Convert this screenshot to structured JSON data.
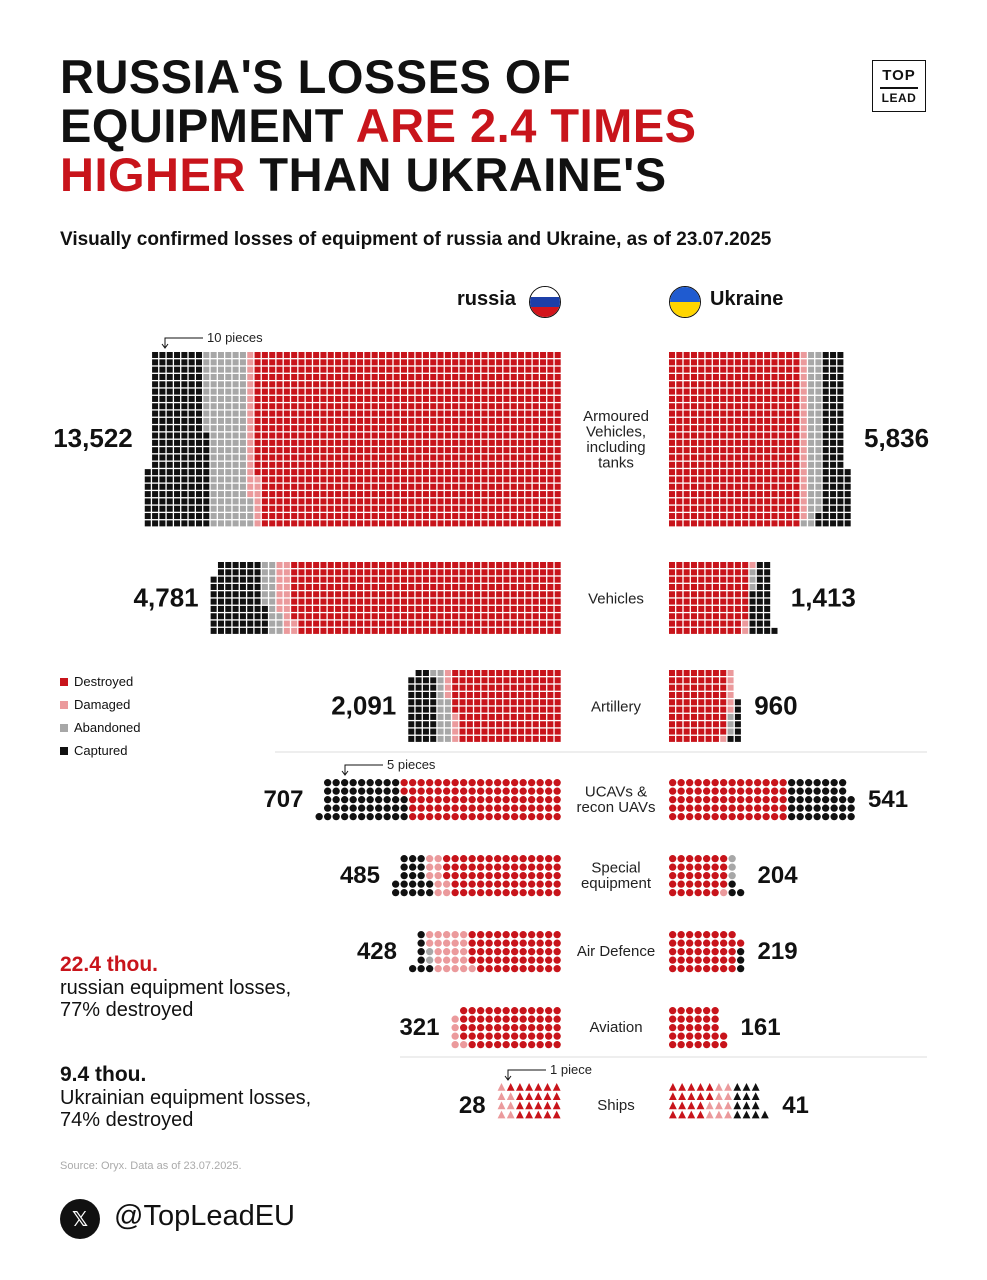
{
  "title": {
    "line1": "RUSSIA'S LOSSES OF",
    "line2_black": "EQUIPMENT ",
    "line2_red": "ARE 2.4 TIMES",
    "line3_red": "HIGHER",
    "line3_black": " THAN UKRAINE'S"
  },
  "subtitle": "Visually confirmed losses of equipment of russia and Ukraine, as of 23.07.2025",
  "logo": {
    "line1": "TOP",
    "line2": "LEAD"
  },
  "colors": {
    "destroyed": "#c8141b",
    "damaged": "#eb9a9c",
    "abandoned": "#a7a7a7",
    "captured": "#111111"
  },
  "legend": [
    "Destroyed",
    "Damaged",
    "Abandoned",
    "Captured"
  ],
  "notes": {
    "armoured": "10 pieces",
    "ucav": "5 pieces",
    "ships": "1 piece"
  },
  "summary": {
    "russia_value": "22.4 thou.",
    "russia_text1": "russian equipment losses,",
    "russia_text2": "77% destroyed",
    "ukraine_value": "9.4 thou.",
    "ukraine_text1": "Ukrainian equipment losses,",
    "ukraine_text2": "74% destroyed"
  },
  "source": "Source: Oryx. Data as of 23.07.2025.",
  "social": {
    "icon": "x-logo-icon",
    "glyph": "𝕏",
    "handle": "@TopLeadEU"
  },
  "chart_data": {
    "type": "waffle",
    "series": [
      {
        "name": "russia",
        "flag": "russia-flag-icon"
      },
      {
        "name": "Ukraine",
        "flag": "ukraine-flag-icon"
      }
    ],
    "categories": [
      {
        "label": "Armoured Vehicles, including tanks",
        "label_lines": [
          "Armoured",
          "Vehicles,",
          "including",
          "tanks"
        ],
        "unit": 10,
        "shape": "square",
        "russia": 13522,
        "ukraine": 5836,
        "russia_parts": [
          0.74,
          0.02,
          0.1,
          0.14
        ],
        "ukraine_parts": [
          0.74,
          0.04,
          0.08,
          0.14
        ]
      },
      {
        "label": "Vehicles",
        "label_lines": [
          "Vehicles"
        ],
        "unit": 10,
        "shape": "square",
        "russia": 4781,
        "ukraine": 1413,
        "russia_parts": [
          0.77,
          0.04,
          0.04,
          0.15
        ],
        "ukraine_parts": [
          0.77,
          0.02,
          0.02,
          0.19
        ]
      },
      {
        "label": "Artillery",
        "label_lines": [
          "Artillery"
        ],
        "unit": 10,
        "shape": "square",
        "russia": 2091,
        "ukraine": 960,
        "russia_parts": [
          0.7,
          0.04,
          0.08,
          0.18
        ],
        "ukraine_parts": [
          0.83,
          0.07,
          0.03,
          0.07
        ]
      },
      {
        "label": "UCAVs & recon UAVs",
        "label_lines": [
          "UCAVs &",
          "recon UAVs"
        ],
        "unit": 5,
        "shape": "circle",
        "russia": 707,
        "ukraine": 541,
        "russia_parts": [
          0.65,
          0.0,
          0.0,
          0.35
        ],
        "ukraine_parts": [
          0.65,
          0.0,
          0.0,
          0.35
        ]
      },
      {
        "label": "Special equipment",
        "label_lines": [
          "Special",
          "equipment"
        ],
        "unit": 5,
        "shape": "circle",
        "russia": 485,
        "ukraine": 204,
        "russia_parts": [
          0.7,
          0.1,
          0.0,
          0.2
        ],
        "ukraine_parts": [
          0.83,
          0.02,
          0.07,
          0.08
        ]
      },
      {
        "label": "Air Defence",
        "label_lines": [
          "Air Defence"
        ],
        "unit": 5,
        "shape": "circle",
        "russia": 428,
        "ukraine": 219,
        "russia_parts": [
          0.63,
          0.27,
          0.02,
          0.08
        ],
        "ukraine_parts": [
          0.93,
          0.0,
          0.0,
          0.07
        ]
      },
      {
        "label": "Aviation",
        "label_lines": [
          "Aviation"
        ],
        "unit": 5,
        "shape": "circle",
        "russia": 321,
        "ukraine": 161,
        "russia_parts": [
          0.92,
          0.08,
          0.0,
          0.0
        ],
        "ukraine_parts": [
          1.0,
          0.0,
          0.0,
          0.0
        ]
      },
      {
        "label": "Ships",
        "label_lines": [
          "Ships"
        ],
        "unit": 1,
        "shape": "triangle",
        "russia": 28,
        "ukraine": 41,
        "russia_parts": [
          0.75,
          0.25,
          0.0,
          0.0
        ],
        "ukraine_parts": [
          0.44,
          0.24,
          0.0,
          0.32
        ]
      }
    ],
    "russia_display": [
      "13,522",
      "4,781",
      "2,091",
      "707",
      "485",
      "428",
      "321",
      "28"
    ],
    "ukraine_display": [
      "5,836",
      "1,413",
      "960",
      "541",
      "204",
      "219",
      "161",
      "41"
    ]
  }
}
